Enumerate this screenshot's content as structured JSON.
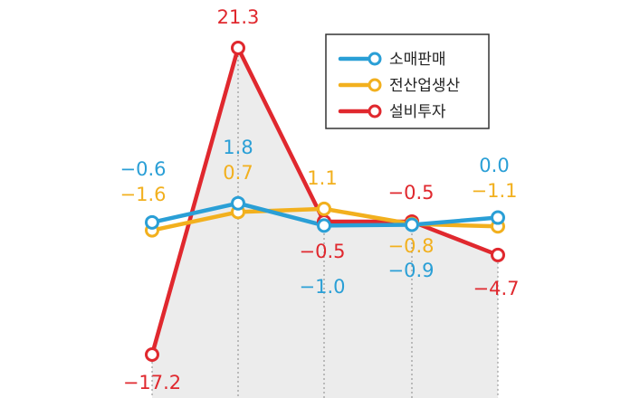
{
  "chart_data": {
    "type": "line",
    "x": [
      1,
      2,
      3,
      4,
      5
    ],
    "ylim": [
      -17.2,
      21.3
    ],
    "grid": "vertical dotted guide lines",
    "legend_position": "top-right",
    "series": [
      {
        "name": "소매판매",
        "color": "#2a9fd6",
        "values": [
          -0.6,
          1.8,
          -1.0,
          -0.9,
          0.0
        ],
        "labels": [
          "−0.6",
          "1.8",
          "−1.0",
          "−0.9",
          "0.0"
        ]
      },
      {
        "name": "전산업생산",
        "color": "#f2b01e",
        "values": [
          -1.6,
          0.7,
          1.1,
          -0.8,
          -1.1
        ],
        "labels": [
          "−1.6",
          "0.7",
          "1.1",
          "−0.8",
          "−1.1"
        ]
      },
      {
        "name": "설비투자",
        "color": "#e0282e",
        "values": [
          -17.2,
          21.3,
          -0.5,
          -0.5,
          -4.7
        ],
        "labels": [
          "−17.2",
          "21.3",
          "−0.5",
          "−0.5",
          "−4.7"
        ]
      }
    ]
  }
}
